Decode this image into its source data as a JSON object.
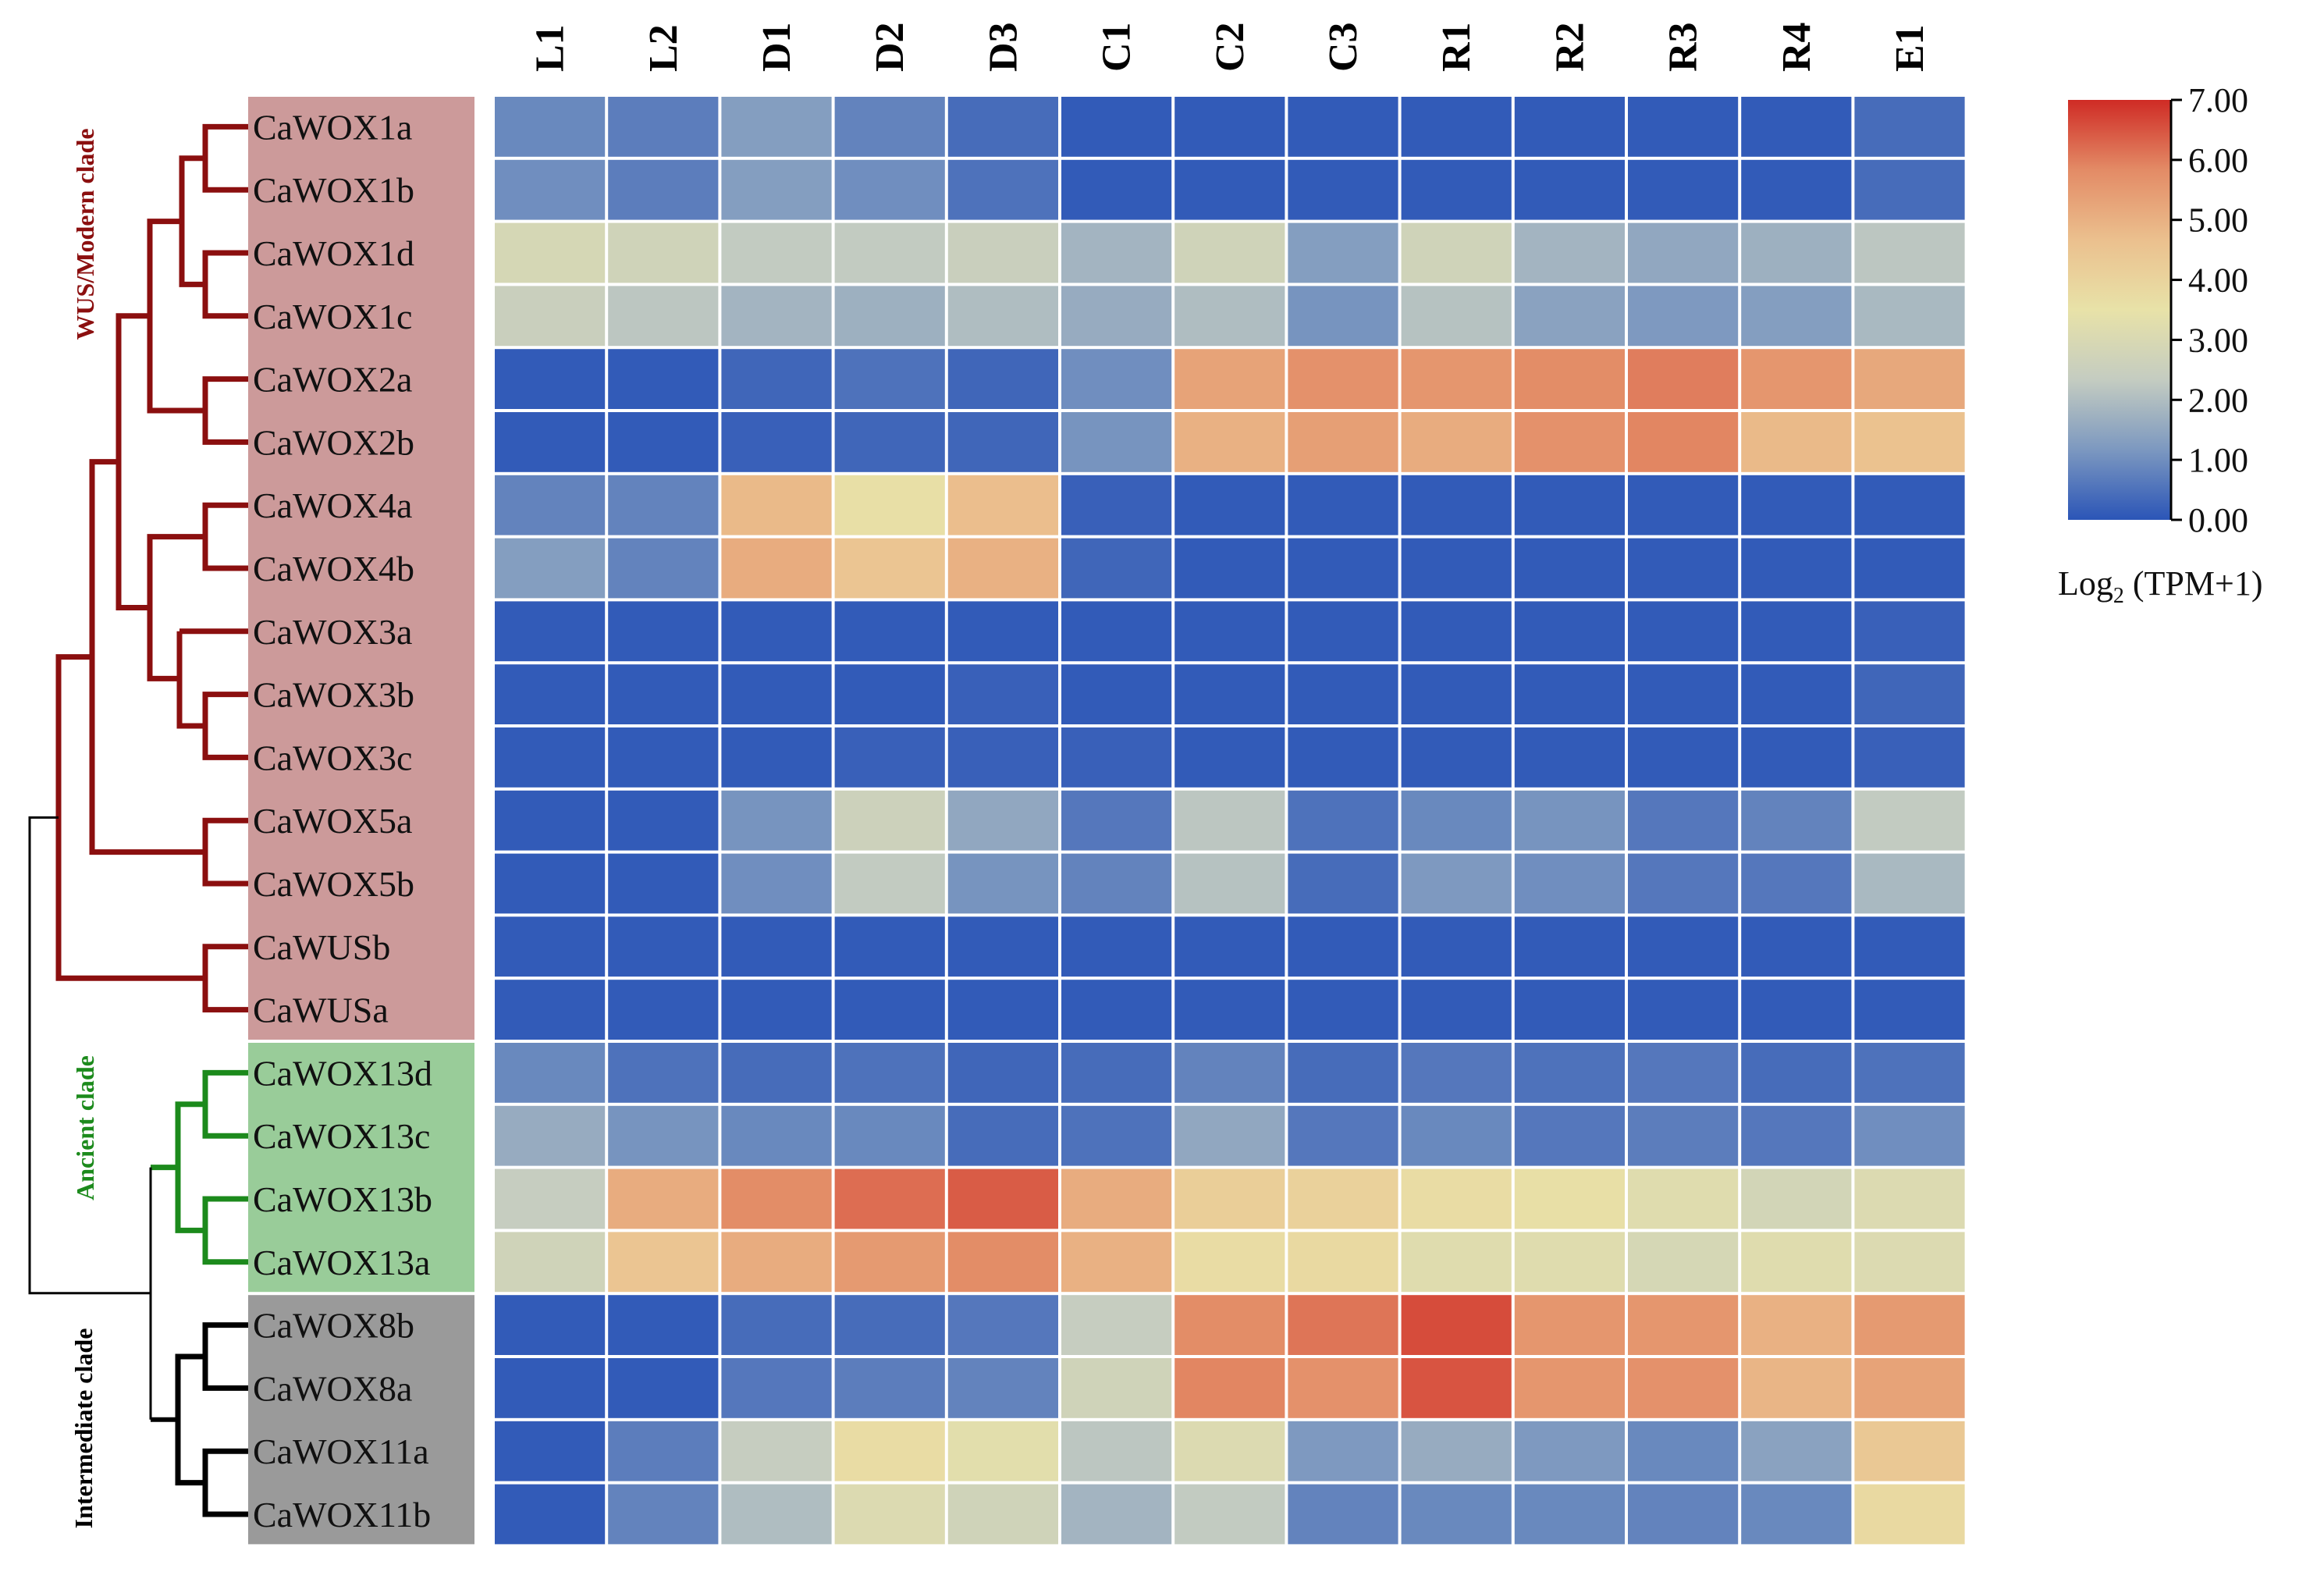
{
  "chart_data": {
    "type": "heatmap",
    "title": "",
    "columns": [
      "L1",
      "L2",
      "D1",
      "D2",
      "D3",
      "C1",
      "C2",
      "C3",
      "R1",
      "R2",
      "R3",
      "R4",
      "E1"
    ],
    "rows": [
      "CaWOX1a",
      "CaWOX1b",
      "CaWOX1d",
      "CaWOX1c",
      "CaWOX2a",
      "CaWOX2b",
      "CaWOX4a",
      "CaWOX4b",
      "CaWOX3a",
      "CaWOX3b",
      "CaWOX3c",
      "CaWOX5a",
      "CaWOX5b",
      "CaWUSb",
      "CaWUSa",
      "CaWOX13d",
      "CaWOX13c",
      "CaWOX13b",
      "CaWOX13a",
      "CaWOX8b",
      "CaWOX8a",
      "CaWOX11a",
      "CaWOX11b"
    ],
    "values": [
      [
        0.9,
        0.7,
        1.3,
        0.8,
        0.4,
        0.1,
        0.1,
        0.1,
        0.1,
        0.1,
        0.1,
        0.1,
        0.4
      ],
      [
        1.0,
        0.7,
        1.3,
        1.0,
        0.5,
        0.1,
        0.1,
        0.1,
        0.1,
        0.1,
        0.1,
        0.1,
        0.4
      ],
      [
        2.9,
        2.7,
        2.3,
        2.3,
        2.5,
        1.8,
        2.7,
        1.3,
        2.7,
        1.8,
        1.5,
        1.7,
        2.2
      ],
      [
        2.5,
        2.2,
        1.8,
        1.7,
        2.0,
        1.6,
        2.0,
        1.1,
        2.1,
        1.4,
        1.2,
        1.3,
        1.9
      ],
      [
        0.1,
        0.1,
        0.3,
        0.5,
        0.3,
        1.0,
        5.3,
        5.7,
        5.6,
        5.8,
        6.0,
        5.6,
        5.2
      ],
      [
        0.1,
        0.1,
        0.2,
        0.3,
        0.3,
        1.1,
        5.0,
        5.4,
        5.1,
        5.7,
        5.9,
        4.8,
        4.6
      ],
      [
        0.8,
        0.8,
        4.8,
        3.6,
        4.7,
        0.2,
        0.1,
        0.1,
        0.1,
        0.1,
        0.1,
        0.1,
        0.1
      ],
      [
        1.3,
        0.8,
        5.1,
        4.5,
        5.0,
        0.3,
        0.1,
        0.1,
        0.1,
        0.1,
        0.1,
        0.1,
        0.1
      ],
      [
        0.1,
        0.1,
        0.1,
        0.1,
        0.1,
        0.1,
        0.1,
        0.1,
        0.1,
        0.1,
        0.1,
        0.1,
        0.2
      ],
      [
        0.1,
        0.1,
        0.1,
        0.1,
        0.2,
        0.1,
        0.1,
        0.1,
        0.1,
        0.1,
        0.1,
        0.1,
        0.3
      ],
      [
        0.1,
        0.1,
        0.1,
        0.2,
        0.2,
        0.2,
        0.1,
        0.1,
        0.1,
        0.1,
        0.1,
        0.1,
        0.2
      ],
      [
        0.1,
        0.1,
        1.1,
        2.6,
        1.5,
        0.6,
        2.2,
        0.5,
        0.9,
        1.1,
        0.6,
        0.8,
        2.3
      ],
      [
        0.1,
        0.1,
        1.0,
        2.3,
        1.1,
        0.8,
        2.1,
        0.4,
        1.2,
        1.0,
        0.6,
        0.6,
        1.9
      ],
      [
        0.1,
        0.1,
        0.1,
        0.1,
        0.1,
        0.1,
        0.1,
        0.1,
        0.1,
        0.1,
        0.1,
        0.1,
        0.1
      ],
      [
        0.1,
        0.1,
        0.1,
        0.1,
        0.1,
        0.1,
        0.1,
        0.1,
        0.1,
        0.1,
        0.1,
        0.1,
        0.1
      ],
      [
        0.9,
        0.5,
        0.4,
        0.5,
        0.3,
        0.4,
        0.8,
        0.4,
        0.6,
        0.5,
        0.6,
        0.4,
        0.5
      ],
      [
        1.6,
        1.1,
        0.9,
        0.9,
        0.4,
        0.5,
        1.5,
        0.6,
        0.9,
        0.6,
        0.7,
        0.6,
        1.0
      ],
      [
        2.4,
        5.1,
        5.8,
        6.2,
        6.4,
        5.1,
        4.2,
        4.1,
        3.7,
        3.6,
        3.2,
        2.8,
        3.1
      ],
      [
        2.7,
        4.5,
        5.1,
        5.5,
        5.8,
        5.0,
        3.7,
        3.8,
        3.2,
        3.2,
        2.9,
        3.2,
        3.1
      ],
      [
        0.1,
        0.1,
        0.4,
        0.4,
        0.6,
        2.4,
        5.8,
        6.1,
        6.6,
        5.6,
        5.6,
        5.0,
        5.5
      ],
      [
        0.1,
        0.1,
        0.6,
        0.7,
        0.8,
        2.7,
        5.9,
        5.7,
        6.5,
        5.6,
        5.7,
        4.9,
        5.3
      ],
      [
        0.1,
        0.7,
        2.4,
        3.7,
        3.3,
        2.2,
        3.1,
        1.2,
        1.6,
        1.2,
        0.9,
        1.4,
        4.4
      ],
      [
        0.1,
        0.8,
        2.0,
        3.1,
        2.7,
        1.8,
        2.3,
        0.8,
        0.9,
        0.9,
        0.8,
        0.9,
        3.8
      ]
    ],
    "vmin": 0,
    "vmax": 7,
    "colorbar": {
      "title_main": "Log",
      "title_sub": "2",
      "title_rest": " (TPM+1)",
      "ticks": [
        "0.00",
        "1.00",
        "2.00",
        "3.00",
        "4.00",
        "5.00",
        "6.00",
        "7.00"
      ],
      "tick_values": [
        0,
        1,
        2,
        3,
        4,
        5,
        6,
        7
      ],
      "colors": [
        "#2b55b7",
        "#7c98c0",
        "#c4ccc1",
        "#e8e2a8",
        "#ebc08e",
        "#e38b66",
        "#cf2b25"
      ]
    },
    "clades": [
      {
        "name": "WUS/Modern clade",
        "first_row": 0,
        "last_row": 14,
        "color": "#8b0f0f",
        "bg": "#cc9a9a"
      },
      {
        "name": "Ancient clade",
        "first_row": 15,
        "last_row": 18,
        "color": "#1c8a1c",
        "bg": "#99cc99"
      },
      {
        "name": "Intermediate clade",
        "first_row": 19,
        "last_row": 22,
        "color": "#000000",
        "bg": "#9a9a9a"
      }
    ]
  }
}
